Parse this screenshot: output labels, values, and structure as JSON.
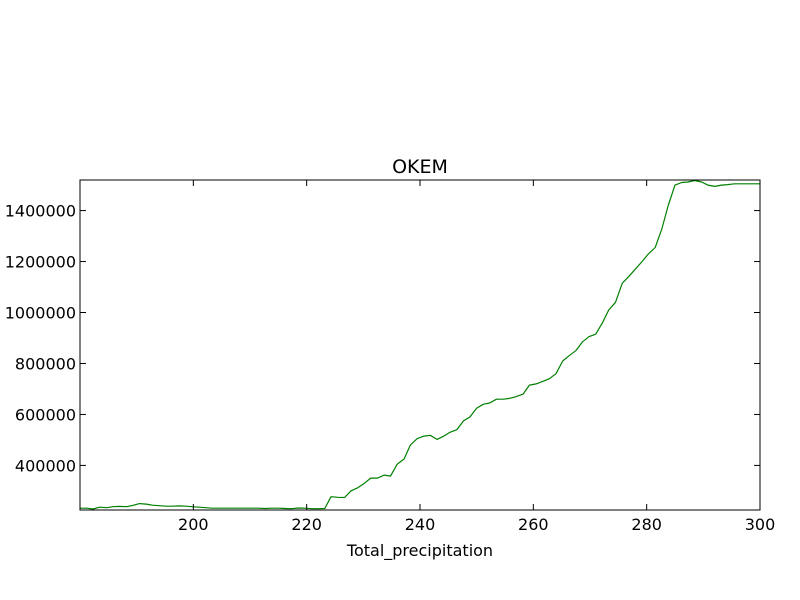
{
  "chart_data": {
    "type": "line",
    "title": "OKEM",
    "xlabel": "Total_precipitation",
    "ylabel": "",
    "xlim": [
      180,
      300
    ],
    "ylim": [
      225000,
      1520000
    ],
    "xticks": [
      200,
      220,
      240,
      260,
      280,
      300
    ],
    "xtick_labels": [
      "200",
      "220",
      "240",
      "260",
      "280",
      "300"
    ],
    "yticks": [
      400000,
      600000,
      800000,
      1000000,
      1200000,
      1400000
    ],
    "ytick_labels": [
      "400000",
      "600000",
      "800000",
      "1000000",
      "1200000",
      "1400000"
    ],
    "grid": false,
    "series": [
      {
        "color": "#007f00",
        "x": [
          180.0,
          181.2,
          182.3,
          183.5,
          184.7,
          185.8,
          187.0,
          188.2,
          189.3,
          190.5,
          191.7,
          192.8,
          194.0,
          195.2,
          196.3,
          197.5,
          198.7,
          199.8,
          201.0,
          202.2,
          203.3,
          204.5,
          205.7,
          206.8,
          208.0,
          209.2,
          210.3,
          211.5,
          212.7,
          213.8,
          215.0,
          216.2,
          217.3,
          218.5,
          219.7,
          220.8,
          222.0,
          223.2,
          224.3,
          225.5,
          226.7,
          227.8,
          229.0,
          230.2,
          231.3,
          232.5,
          233.7,
          234.8,
          236.0,
          237.2,
          238.3,
          239.5,
          240.7,
          241.8,
          243.0,
          244.2,
          245.3,
          246.5,
          247.7,
          248.8,
          250.0,
          251.2,
          252.3,
          253.5,
          254.7,
          255.8,
          257.0,
          258.2,
          259.3,
          260.5,
          261.7,
          262.8,
          264.0,
          265.2,
          266.3,
          267.5,
          268.7,
          269.8,
          271.0,
          272.2,
          273.3,
          274.5,
          275.7,
          276.8,
          278.0,
          279.2,
          280.3,
          281.5,
          282.7,
          283.8,
          285.0,
          286.2,
          287.3,
          288.5,
          289.7,
          290.8,
          292.0,
          293.2,
          294.3,
          295.5,
          296.7,
          297.8,
          299.0,
          300.0
        ],
        "y": [
          232000,
          232000,
          229000,
          236000,
          234000,
          238000,
          239000,
          238000,
          243000,
          250000,
          248000,
          244000,
          242000,
          240000,
          240000,
          241000,
          240000,
          238000,
          236000,
          234000,
          232000,
          232000,
          232000,
          232000,
          232000,
          232000,
          232000,
          232000,
          231000,
          232000,
          232000,
          231000,
          230000,
          233000,
          232000,
          230000,
          230000,
          231000,
          277000,
          275000,
          274000,
          300000,
          312000,
          330000,
          350000,
          350000,
          362000,
          358000,
          405000,
          425000,
          480000,
          505000,
          515000,
          518000,
          502000,
          515000,
          530000,
          540000,
          575000,
          590000,
          625000,
          640000,
          645000,
          660000,
          660000,
          663000,
          670000,
          680000,
          715000,
          720000,
          730000,
          740000,
          760000,
          810000,
          830000,
          850000,
          885000,
          905000,
          915000,
          960000,
          1010000,
          1040000,
          1115000,
          1140000,
          1170000,
          1200000,
          1230000,
          1255000,
          1330000,
          1420000,
          1500000,
          1510000,
          1512000,
          1518000,
          1512000,
          1500000,
          1495000,
          1500000,
          1502000,
          1505000,
          1505000,
          1505000,
          1505000,
          1505000
        ]
      }
    ]
  }
}
